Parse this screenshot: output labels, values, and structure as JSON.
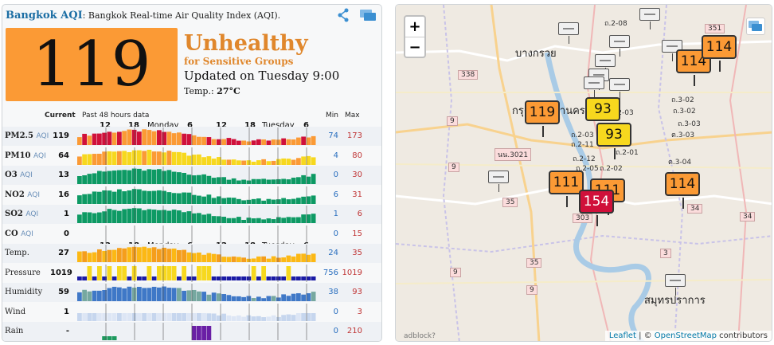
{
  "header": {
    "city": "Bangkok AQI",
    "description": ": Bangkok Real-time Air Quality Index (AQI)."
  },
  "aqi": {
    "value": "119",
    "level": "Unhealthy",
    "level_sub": "for Sensitive Groups",
    "updated": "Updated on Tuesday 9:00",
    "temp_label": "Temp.: ",
    "temp_value": "27°C",
    "color": "#fb9a35"
  },
  "columns": {
    "current": "Current",
    "past": "Past 48 hours data",
    "min": "Min",
    "max": "Max"
  },
  "ticks": {
    "hours_a": [
      "12",
      "18",
      "6",
      "12",
      "18",
      "6"
    ],
    "days": [
      "Monday",
      "Tuesday"
    ]
  },
  "rows": [
    {
      "name": "PM2.5",
      "suffix": "AQI",
      "current": "119",
      "min": "74",
      "max": "173",
      "style": "pm25"
    },
    {
      "name": "PM10",
      "suffix": "AQI",
      "current": "64",
      "min": "4",
      "max": "80",
      "style": "pm10"
    },
    {
      "name": "O3",
      "suffix": "AQI",
      "current": "13",
      "min": "0",
      "max": "30",
      "style": "green"
    },
    {
      "name": "NO2",
      "suffix": "AQI",
      "current": "16",
      "min": "6",
      "max": "31",
      "style": "green"
    },
    {
      "name": "SO2",
      "suffix": "AQI",
      "current": "1",
      "min": "1",
      "max": "6",
      "style": "green"
    },
    {
      "name": "CO",
      "suffix": "AQI",
      "current": "0",
      "min": "0",
      "max": "15",
      "style": "none"
    },
    {
      "name": "Temp.",
      "suffix": "",
      "current": "27",
      "min": "24",
      "max": "35",
      "style": "temp"
    },
    {
      "name": "Pressure",
      "suffix": "",
      "current": "1019",
      "min": "756",
      "max": "1019",
      "style": "pressure"
    },
    {
      "name": "Humidity",
      "suffix": "",
      "current": "59",
      "min": "38",
      "max": "93",
      "style": "humidity"
    },
    {
      "name": "Wind",
      "suffix": "",
      "current": "1",
      "min": "0",
      "max": "3",
      "style": "wind"
    },
    {
      "name": "Rain",
      "suffix": "",
      "current": "-",
      "min": "0",
      "max": "210",
      "style": "rain"
    }
  ],
  "map": {
    "zoom_in": "+",
    "zoom_out": "−",
    "attribution_leaflet": "Leaflet",
    "attribution_sep": " | © ",
    "attribution_osm": "OpenStreetMap",
    "attribution_rest": " contributors",
    "adblock": "adblock?",
    "markers": [
      {
        "value": "119",
        "color": "orange"
      },
      {
        "value": "93",
        "color": "yellow"
      },
      {
        "value": "93",
        "color": "yellow"
      },
      {
        "value": "111",
        "color": "orange"
      },
      {
        "value": "111",
        "color": "orange"
      },
      {
        "value": "154",
        "color": "red"
      },
      {
        "value": "114",
        "color": "orange"
      },
      {
        "value": "114",
        "color": "orange"
      },
      {
        "value": "114",
        "color": "orange"
      }
    ],
    "places": [
      "บางกรวย",
      "กรุงเทพมหานคร",
      "สมุทรปราการ"
    ],
    "shields": [
      "338",
      "9",
      "9",
      "9",
      "35",
      "35",
      "303",
      "3",
      "34",
      "34",
      "351",
      "9",
      "นน.3021"
    ],
    "roads": [
      "ถ.2-08",
      "ถ.3-02",
      "ถ.3-02",
      "ถ.3-03",
      "ต.3-03",
      "ต.3-04",
      "ถ.2-03",
      "ถ.2-03",
      "ถ.2-11",
      "ถ.2-12",
      "ถ.2-05",
      "ถ.2-01",
      "ถ.2-02"
    ]
  }
}
